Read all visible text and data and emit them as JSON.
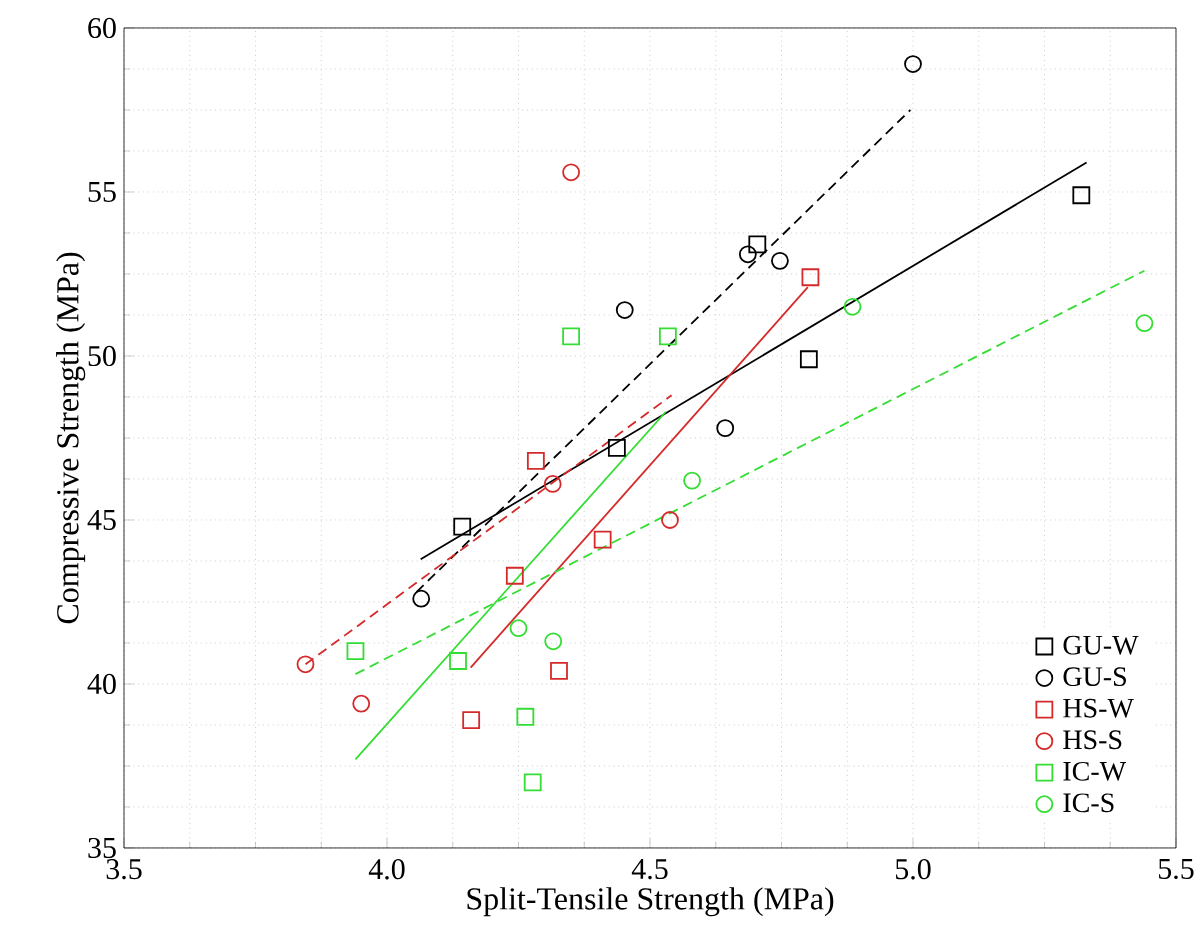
{
  "chart_data": {
    "type": "scatter",
    "xlabel": "Split-Tensile Strength (MPa)",
    "ylabel": "Compressive Strength (MPa)",
    "xlim": [
      3.5,
      5.5
    ],
    "ylim": [
      35,
      60
    ],
    "xticks": [
      3.5,
      {
        "value": 4,
        "label": "4.0"
      },
      4.5,
      {
        "value": 5,
        "label": "5.0"
      },
      5.5
    ],
    "yticks": [
      35,
      40,
      45,
      50,
      55,
      60
    ],
    "grid": true,
    "legend": "bottom right",
    "series": [
      {
        "name": "GU-W",
        "marker": "square",
        "color": "#000000",
        "x": [
          4.143,
          4.437,
          4.704,
          4.802,
          5.32
        ],
        "values": [
          44.8,
          47.2,
          53.4,
          49.9,
          54.9
        ]
      },
      {
        "name": "GU-S",
        "marker": "circle",
        "color": "#000000",
        "x": [
          4.065,
          4.452,
          4.643,
          4.686,
          4.747,
          5.0
        ],
        "values": [
          42.6,
          51.4,
          47.8,
          53.1,
          52.9,
          58.9
        ]
      },
      {
        "name": "HS-W",
        "marker": "square",
        "color": "#d42a2a",
        "x": [
          4.16,
          4.243,
          4.283,
          4.327,
          4.41,
          4.805
        ],
        "values": [
          38.9,
          43.3,
          46.8,
          40.4,
          44.4,
          52.4
        ]
      },
      {
        "name": "HS-S",
        "marker": "circle",
        "color": "#d42a2a",
        "x": [
          3.845,
          3.951,
          4.315,
          4.35,
          4.538
        ],
        "values": [
          40.6,
          39.4,
          46.1,
          55.6,
          45.0
        ]
      },
      {
        "name": "IC-W",
        "marker": "square",
        "color": "#33dd33",
        "x": [
          3.94,
          4.135,
          4.263,
          4.277,
          4.35,
          4.534
        ],
        "values": [
          41.0,
          40.7,
          39.0,
          37.0,
          50.6,
          50.6
        ]
      },
      {
        "name": "IC-S",
        "marker": "circle",
        "color": "#33dd33",
        "x": [
          4.25,
          4.316,
          4.58,
          4.885,
          5.44
        ],
        "values": [
          41.7,
          41.3,
          46.2,
          51.5,
          51.0
        ]
      },
      {
        "type": "line",
        "marker": "none",
        "line_style": "solid",
        "color": "#000000",
        "x": [
          4.064,
          5.33
        ],
        "values": [
          43.8,
          55.9
        ]
      },
      {
        "type": "line",
        "marker": "none",
        "line_style": "dashed",
        "color": "#000000",
        "x": [
          4.056,
          4.995
        ],
        "values": [
          42.8,
          57.5
        ]
      },
      {
        "type": "line",
        "marker": "none",
        "line_style": "solid",
        "color": "#d42a2a",
        "x": [
          4.159,
          4.8
        ],
        "values": [
          40.5,
          52.1
        ]
      },
      {
        "type": "line",
        "marker": "none",
        "line_style": "dashed",
        "color": "#d42a2a",
        "x": [
          3.845,
          4.541
        ],
        "values": [
          40.6,
          48.8
        ]
      },
      {
        "type": "line",
        "marker": "none",
        "line_style": "solid",
        "color": "#33dd33",
        "x": [
          3.94,
          4.53
        ],
        "values": [
          37.7,
          48.3
        ]
      },
      {
        "type": "line",
        "marker": "none",
        "line_style": "dashed",
        "color": "#33dd33",
        "x": [
          3.94,
          5.44
        ],
        "values": [
          40.3,
          52.6
        ]
      }
    ]
  }
}
